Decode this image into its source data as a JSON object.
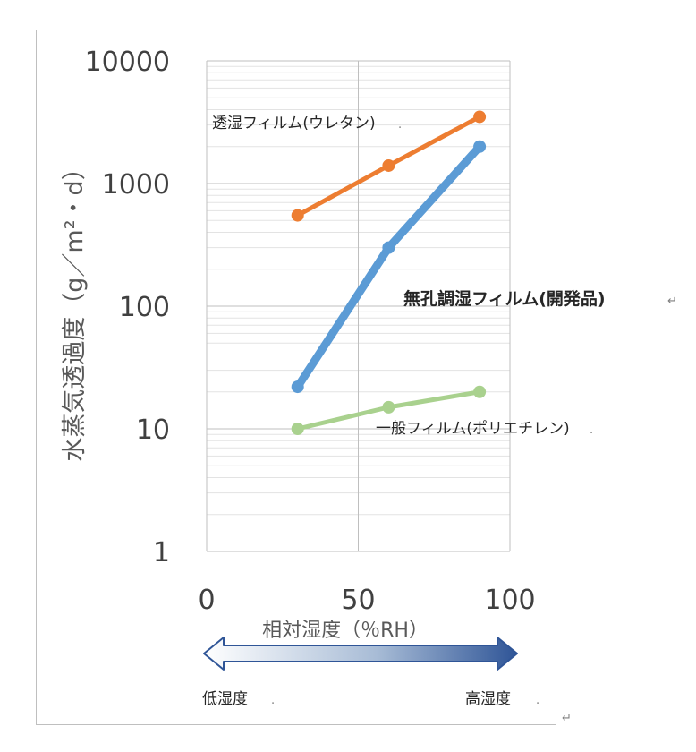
{
  "chart_data": {
    "type": "line",
    "ylabel": "水蒸気透過度（g／m²・d）",
    "xlabel": "相対湿度（％RH）",
    "yscale": "log",
    "ylim": [
      1,
      10000
    ],
    "xlim": [
      0,
      100
    ],
    "y_ticks": [
      "1",
      "10",
      "100",
      "1000",
      "10000"
    ],
    "x_ticks": [
      "0",
      "50",
      "100"
    ],
    "grid": true,
    "series": [
      {
        "name": "透湿フィルム(ウレタン)",
        "color": "#ED7D31",
        "x": [
          30,
          60,
          90
        ],
        "y": [
          550,
          1400,
          3500
        ]
      },
      {
        "name": "無孔調湿フィルム(開発品)",
        "color": "#5B9BD5",
        "x": [
          30,
          60,
          90
        ],
        "y": [
          22,
          300,
          2000
        ]
      },
      {
        "name": "一般フィルム(ポリエチレン)",
        "color": "#A9D18E",
        "x": [
          30,
          60,
          90
        ],
        "y": [
          10,
          15,
          20
        ]
      }
    ],
    "arrow_labels": {
      "left": "低湿度",
      "right": "高湿度"
    }
  },
  "marks": {
    "return": "↵",
    "small": "."
  }
}
